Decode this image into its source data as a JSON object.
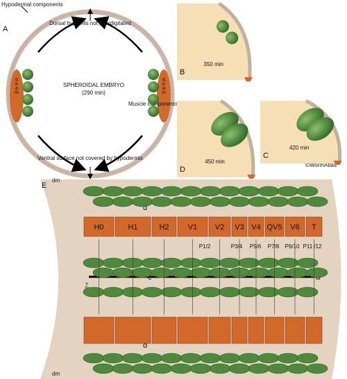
{
  "panel_a": {
    "label": "A",
    "hypodermal": "Hypodermal components",
    "dorsal": "Dorsal hyp cells not interdigitated",
    "seam_left": "Seam",
    "seam_right": "Seam",
    "title": "SPHEROIDAL EMBRYO",
    "time": "(290 min)",
    "muscle": "Muscle components",
    "ventral": "Ventral surface not covered by hypodermis"
  },
  "panels": [
    {
      "label": "B",
      "time": "350 min"
    },
    {
      "label": "C",
      "time": "420 min"
    },
    {
      "label": "D",
      "time": "450 min"
    }
  ],
  "credit": "©WormAtlas",
  "panel_e": {
    "label": "E",
    "dm_top": "dm",
    "dm_bottom": "dm",
    "vm": "vm",
    "d_top": "d",
    "d_bottom": "d",
    "e": "e",
    "a": "a",
    "seam_cells": [
      "H0",
      "H1",
      "H2",
      "V1",
      "V2",
      "V3",
      "V4",
      "QV5",
      "V6",
      "T"
    ],
    "p_cells": [
      "P1/2",
      "P3/4",
      "P5/6",
      "P7/8",
      "P9/10",
      "P11 /12"
    ]
  }
}
